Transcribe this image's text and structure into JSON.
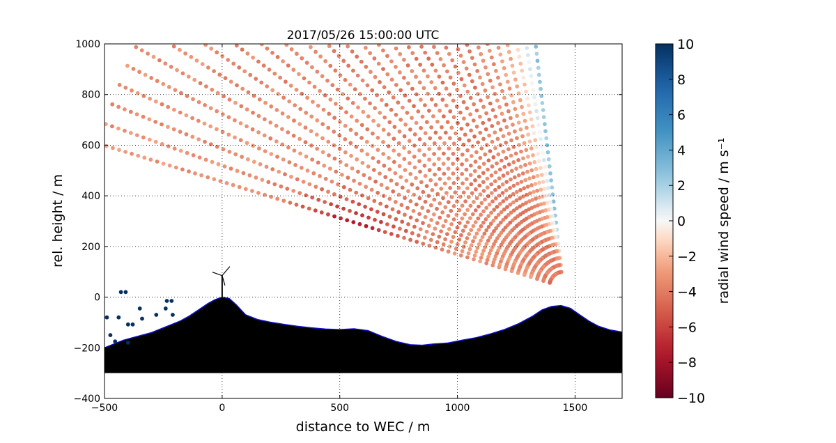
{
  "chart_data": {
    "type": "scatter",
    "title": "2017/05/26 15:00:00 UTC",
    "xlabel": "distance to WEC / m",
    "ylabel": "rel. height / m",
    "xlim": [
      -500,
      1700
    ],
    "ylim": [
      -400,
      1000
    ],
    "x_ticks": [
      "−500",
      "0",
      "500",
      "1000",
      "1500"
    ],
    "y_ticks": [
      "−400",
      "−200",
      "0",
      "200",
      "400",
      "600",
      "800",
      "1000"
    ],
    "grid": true,
    "colorbar": {
      "label": "radial wind speed / m s⁻¹",
      "range": [
        -10,
        10
      ],
      "ticks": [
        "−10",
        "−8",
        "−6",
        "−4",
        "−2",
        "0",
        "2",
        "4",
        "6",
        "8",
        "10"
      ],
      "colormap": "RdBu"
    },
    "lidar_scan": {
      "origin": [
        1450,
        40
      ],
      "range_gate_start_m": 60,
      "range_gate_step_m": 28,
      "range_gates": 72,
      "beam_angles_deg": [
        97,
        164
      ],
      "beam_count": 30
    },
    "terrain": {
      "profile_x": [
        -500,
        -460,
        -420,
        -380,
        -340,
        -300,
        -260,
        -220,
        -180,
        -140,
        -100,
        -60,
        -30,
        0,
        30,
        60,
        100,
        150,
        200,
        260,
        320,
        380,
        440,
        500,
        560,
        620,
        680,
        740,
        800,
        850,
        900,
        960,
        1020,
        1080,
        1140,
        1200,
        1260,
        1320,
        1360,
        1400,
        1440,
        1480,
        1520,
        1560,
        1600,
        1650,
        1700
      ],
      "profile_y": [
        -200,
        -185,
        -170,
        -160,
        -150,
        -140,
        -125,
        -110,
        -95,
        -75,
        -50,
        -25,
        -10,
        0,
        -5,
        -30,
        -70,
        -88,
        -98,
        -107,
        -115,
        -121,
        -126,
        -128,
        -125,
        -132,
        -155,
        -175,
        -188,
        -190,
        -185,
        -181,
        -170,
        -160,
        -145,
        -128,
        -105,
        -75,
        -50,
        -37,
        -33,
        -44,
        -70,
        -95,
        -115,
        -130,
        -138
      ],
      "fill_color": "#000000",
      "outline_color": "#1010cc",
      "base_m": -300
    },
    "wec_position": [
      0,
      0
    ],
    "wec_hub_height_m": 85,
    "outlier_points": [
      [
        -490,
        -80
      ],
      [
        -440,
        -80
      ],
      [
        -475,
        -150
      ],
      [
        -455,
        -175
      ],
      [
        -430,
        20
      ],
      [
        -410,
        20
      ],
      [
        -400,
        -108
      ],
      [
        -380,
        -108
      ],
      [
        -350,
        -45
      ],
      [
        -340,
        -85
      ],
      [
        -240,
        -45
      ],
      [
        -235,
        -15
      ],
      [
        -215,
        -15
      ],
      [
        -210,
        -70
      ],
      [
        -280,
        -70
      ],
      [
        -400,
        -180
      ]
    ],
    "outlier_color": "#053061"
  }
}
